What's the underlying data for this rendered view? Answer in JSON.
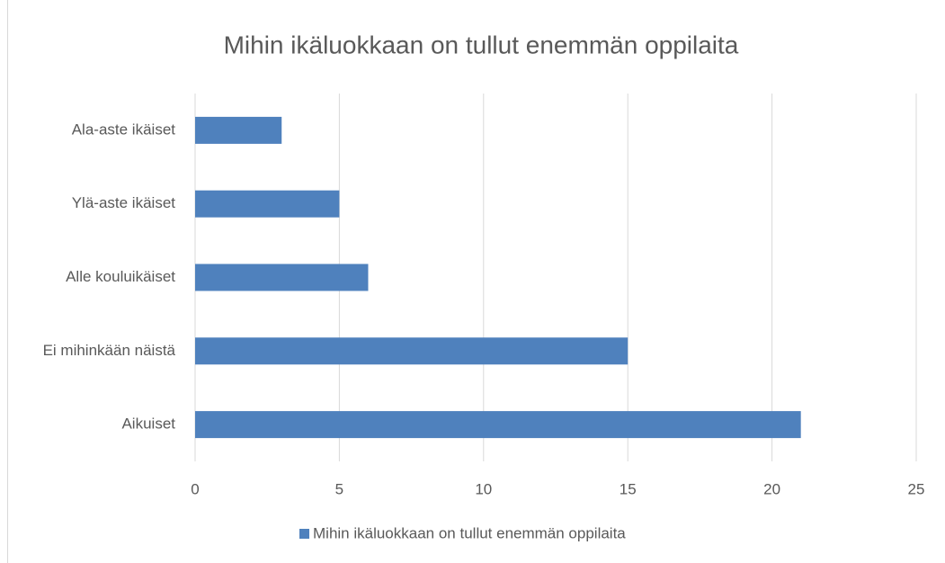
{
  "chart_data": {
    "type": "bar",
    "orientation": "horizontal",
    "title": "Mihin ikäluokkaan on tullut enemmän oppilaita",
    "categories": [
      "Ala-aste ikäiset",
      "Ylä-aste ikäiset",
      "Alle kouluikäiset",
      "Ei mihinkään näistä",
      "Aikuiset"
    ],
    "series": [
      {
        "name": "Mihin ikäluokkaan on tullut enemmän oppilaita",
        "color": "#4f81bd",
        "values": [
          3,
          5,
          6,
          15,
          21
        ]
      }
    ],
    "xlim": [
      0,
      25
    ],
    "xticks": [
      0,
      5,
      10,
      15,
      20,
      25
    ],
    "grid": true,
    "legend": "bottom"
  }
}
